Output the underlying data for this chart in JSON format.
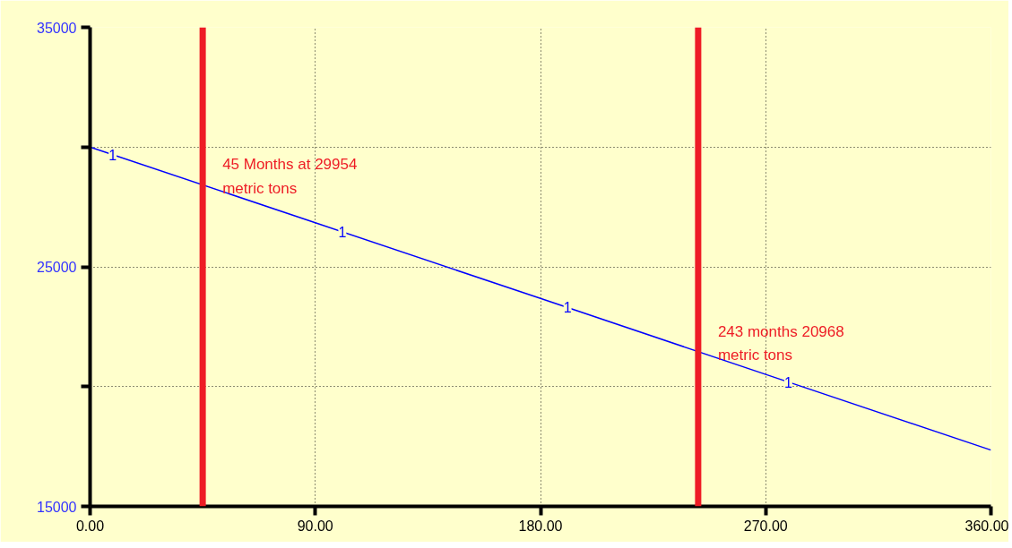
{
  "chart_data": {
    "type": "line",
    "x": [
      0,
      90,
      180,
      270,
      360
    ],
    "series": [
      {
        "name": "1",
        "color": "#0000ff",
        "values": [
          30000,
          26840,
          23680,
          20510,
          17350
        ]
      }
    ],
    "xlim": [
      0,
      360
    ],
    "xticks": [
      {
        "value": 0,
        "label": "0.00"
      },
      {
        "value": 90,
        "label": "90.00"
      },
      {
        "value": 180,
        "label": "180.00"
      },
      {
        "value": 270,
        "label": "270.00"
      },
      {
        "value": 360,
        "label": "360.00"
      }
    ],
    "ylim": [
      15000,
      35000
    ],
    "yticks": [
      15000,
      {
        "value": 20000,
        "label": null
      },
      25000,
      {
        "value": 30000,
        "label": null
      },
      35000
    ],
    "ref_lines": [
      {
        "axis": "x",
        "value": 45,
        "label": "45 Months at 29954 metric tons",
        "color": "#ee1c25"
      },
      {
        "axis": "x",
        "value": 243,
        "label": "243 months 20968 metric tons",
        "color": "#ee1c25"
      }
    ],
    "grid": true,
    "marker": "none",
    "line_style": "solid"
  }
}
